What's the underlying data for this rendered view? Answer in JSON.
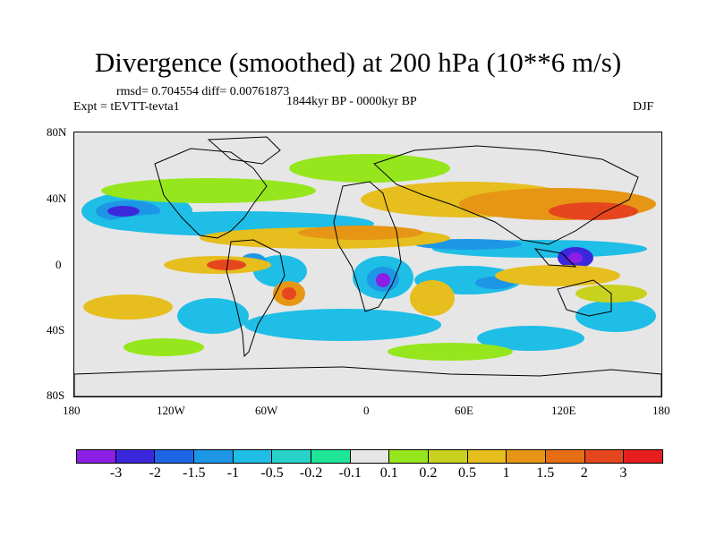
{
  "title": "Divergence (smoothed) at 200 hPa (10**6 m/s)",
  "stats_line": "rmsd= 0.704554 diff= 0.00761873",
  "left_label": "Expt = tEVTT-tevta1",
  "center_label": "1844kyr BP - 0000kyr BP",
  "right_label": "DJF",
  "lat_labels": [
    "80N",
    "40N",
    "0",
    "40S",
    "80S"
  ],
  "lon_labels": [
    "180",
    "120W",
    "60W",
    "0",
    "60E",
    "120E",
    "180"
  ],
  "colorbar": {
    "colors": [
      "#8c1fe6",
      "#3c28dc",
      "#1e64e6",
      "#1e96e6",
      "#1ebee6",
      "#28d2c8",
      "#1ee696",
      "#e6e6e6",
      "#96e61e",
      "#c8d21e",
      "#e6be1e",
      "#e69614",
      "#e66e14",
      "#e6461e",
      "#e61e1e"
    ],
    "labels": [
      "-3",
      "-2",
      "-1.5",
      "-1",
      "-0.5",
      "-0.2",
      "-0.1",
      "0.1",
      "0.2",
      "0.5",
      "1",
      "1.5",
      "2",
      "3"
    ]
  }
}
